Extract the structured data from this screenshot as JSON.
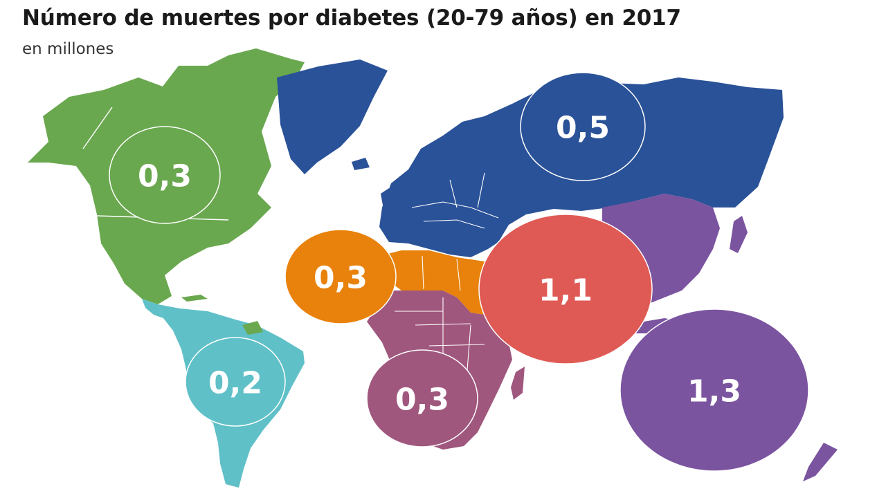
{
  "title": "Número de muertes por diabetes (20-79 años) en 2017",
  "subtitle": "en millones",
  "colors": {
    "north_america": "#6aa84f",
    "south_central_america": "#5fc0c8",
    "europe": "#2a5298",
    "middle_east_north_africa": "#e8820c",
    "africa": "#a0577e",
    "south_east_asia": "#e05a55",
    "western_pacific": "#7b54a0"
  },
  "regions": [
    {
      "id": "north_america",
      "value": "0,3",
      "value_num": 0.3
    },
    {
      "id": "south_central_america",
      "value": "0,2",
      "value_num": 0.2
    },
    {
      "id": "europe",
      "value": "0,5",
      "value_num": 0.5
    },
    {
      "id": "middle_east_north_africa",
      "value": "0,3",
      "value_num": 0.3
    },
    {
      "id": "africa",
      "value": "0,3",
      "value_num": 0.3
    },
    {
      "id": "south_east_asia",
      "value": "1,1",
      "value_num": 1.1
    },
    {
      "id": "western_pacific",
      "value": "1,3",
      "value_num": 1.3
    }
  ]
}
